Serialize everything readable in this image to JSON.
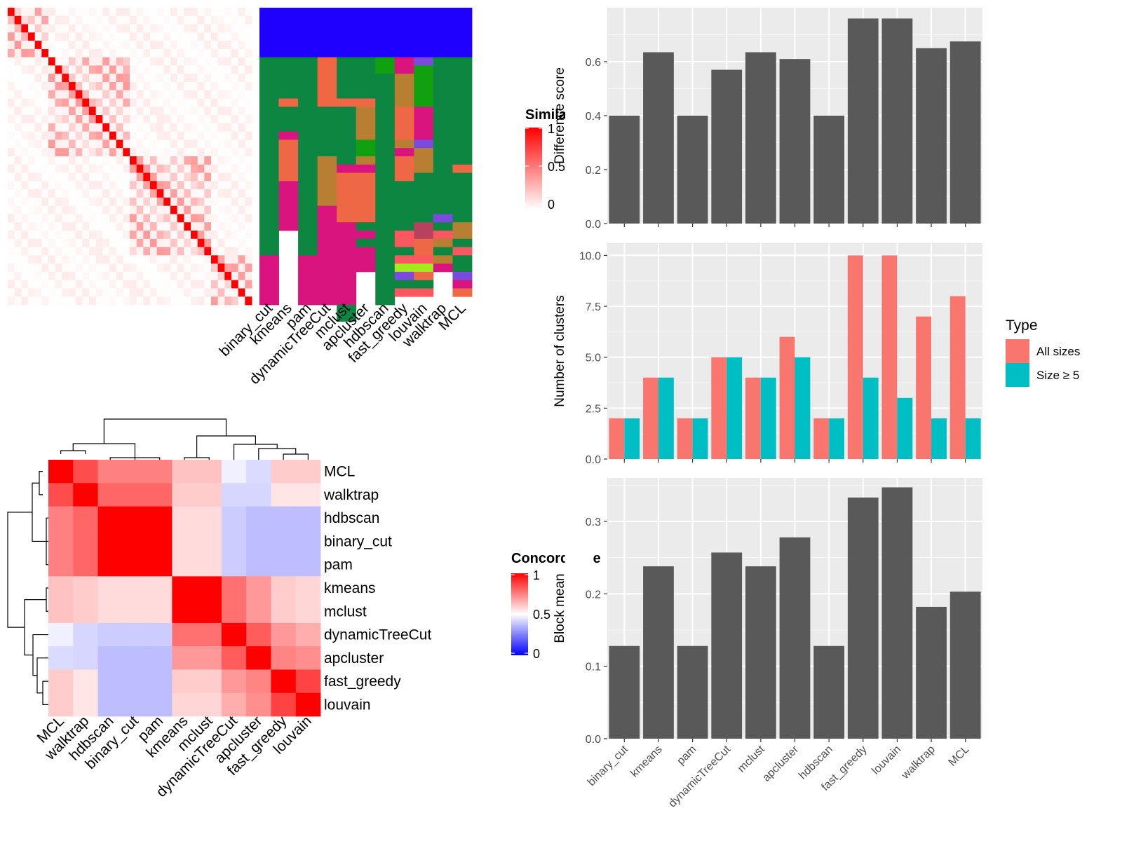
{
  "chart_data": [
    {
      "type": "heatmap",
      "panel": "similarity-heatmap",
      "legend_title": "Similarity",
      "legend_ticks": [
        "1",
        "0.5",
        "0"
      ],
      "colorscale": [
        "#ffffff",
        "#ff0000"
      ],
      "n": 36,
      "blocks": [
        [
          0,
          6
        ],
        [
          6,
          18
        ],
        [
          18,
          30
        ],
        [
          30,
          36
        ]
      ],
      "within_block_similarity": 0.4,
      "between_block_similarity": 0.08
    },
    {
      "type": "heatmap",
      "panel": "cluster-assignment-heatmap",
      "columns": [
        "binary_cut",
        "kmeans",
        "pam",
        "dynamicTreeCut",
        "mclust",
        "apcluster",
        "hdbscan",
        "fast_greedy",
        "louvain",
        "walktrap",
        "MCL"
      ],
      "colors": {
        "blue": "#1f00ff",
        "green": "#0d8642",
        "salmon": "#ef6845",
        "magenta": "#d9147e",
        "brown": "#b87f33",
        "bright_green": "#10a010",
        "purple": "#7b4be0",
        "pink": "#f8585f",
        "lime": "#a4ea1d",
        "maroon": "#b8415f"
      },
      "segments": [
        [
          [
            "blue",
            6
          ],
          [
            "green",
            24
          ],
          [
            "magenta",
            6
          ]
        ],
        [
          [
            "blue",
            6
          ],
          [
            "green",
            5
          ],
          [
            "salmon",
            1
          ],
          [
            "green",
            3
          ],
          [
            "magenta",
            1
          ],
          [
            "salmon",
            5
          ],
          [
            "magenta",
            6
          ]
        ],
        [
          [
            "blue",
            6
          ],
          [
            "green",
            24
          ],
          [
            "magenta",
            6
          ]
        ],
        [
          [
            "blue",
            6
          ],
          [
            "salmon",
            6
          ],
          [
            "green",
            6
          ],
          [
            "brown",
            6
          ],
          [
            "magenta",
            6
          ],
          [
            "magenta",
            6
          ]
        ],
        [
          [
            "blue",
            6
          ],
          [
            "green",
            5
          ],
          [
            "salmon",
            1
          ],
          [
            "green",
            7
          ],
          [
            "magenta",
            1
          ],
          [
            "salmon",
            6
          ],
          [
            "magenta",
            6
          ],
          [
            "magenta",
            4
          ],
          [
            "green",
            2
          ]
        ],
        [
          [
            "blue",
            6
          ],
          [
            "green",
            5
          ],
          [
            "salmon",
            1
          ],
          [
            "brown",
            4
          ],
          [
            "bright_green",
            2
          ],
          [
            "brown",
            1
          ],
          [
            "magenta",
            1
          ],
          [
            "salmon",
            6
          ],
          [
            "green",
            1
          ],
          [
            "magenta",
            1
          ],
          [
            "green",
            1
          ],
          [
            "magenta",
            3
          ]
        ],
        [
          [
            "blue",
            6
          ],
          [
            "bright_green",
            2
          ],
          [
            "green",
            28
          ]
        ],
        [
          [
            "blue",
            6
          ],
          [
            "magenta",
            2
          ],
          [
            "brown",
            4
          ],
          [
            "salmon",
            4
          ],
          [
            "brown",
            1
          ],
          [
            "magenta",
            1
          ],
          [
            "salmon",
            3
          ],
          [
            "green",
            6
          ],
          [
            "pink",
            2
          ],
          [
            "green",
            1
          ],
          [
            "pink",
            1
          ],
          [
            "lime",
            1
          ],
          [
            "purple",
            1
          ],
          [
            "green",
            1
          ],
          [
            "pink",
            1
          ]
        ],
        [
          [
            "blue",
            6
          ],
          [
            "purple",
            1
          ],
          [
            "bright_green",
            5
          ],
          [
            "magenta",
            4
          ],
          [
            "purple",
            1
          ],
          [
            "brown",
            3
          ],
          [
            "green",
            6
          ],
          [
            "maroon",
            2
          ],
          [
            "salmon",
            2
          ],
          [
            "pink",
            1
          ],
          [
            "lime",
            1
          ],
          [
            "salmon",
            1
          ],
          [
            "green",
            1
          ],
          [
            "pink",
            1
          ]
        ],
        [
          [
            "blue",
            6
          ],
          [
            "green",
            19
          ],
          [
            "purple",
            1
          ],
          [
            "green",
            1
          ],
          [
            "pink",
            1
          ],
          [
            "brown",
            1
          ],
          [
            "green",
            1
          ],
          [
            "brown",
            1
          ],
          [
            "magenta",
            1
          ]
        ],
        [
          [
            "blue",
            6
          ],
          [
            "green",
            13
          ],
          [
            "salmon",
            1
          ],
          [
            "green",
            6
          ],
          [
            "brown",
            2
          ],
          [
            "green",
            1
          ],
          [
            "pink",
            1
          ],
          [
            "green",
            2
          ],
          [
            "purple",
            1
          ],
          [
            "magenta",
            1
          ],
          [
            "salmon",
            1
          ]
        ]
      ]
    },
    {
      "type": "heatmap",
      "panel": "concordance-heatmap",
      "legend_title": "Concordance",
      "legend_ticks": [
        "1",
        "0.5",
        "0"
      ],
      "colorscale": [
        "#0000ff",
        "#ffffff",
        "#ff0000"
      ],
      "row_labels": [
        "MCL",
        "walktrap",
        "hdbscan",
        "binary_cut",
        "pam",
        "kmeans",
        "mclust",
        "dynamicTreeCut",
        "apcluster",
        "fast_greedy",
        "louvain"
      ],
      "col_labels": [
        "MCL",
        "walktrap",
        "hdbscan",
        "binary_cut",
        "pam",
        "kmeans",
        "mclust",
        "dynamicTreeCut",
        "apcluster",
        "fast_greedy",
        "louvain"
      ],
      "matrix": [
        [
          1.0,
          0.85,
          0.75,
          0.75,
          0.75,
          0.62,
          0.62,
          0.47,
          0.43,
          0.6,
          0.6
        ],
        [
          0.85,
          1.0,
          0.8,
          0.8,
          0.8,
          0.6,
          0.6,
          0.42,
          0.42,
          0.55,
          0.55
        ],
        [
          0.75,
          0.8,
          1.0,
          1.0,
          1.0,
          0.57,
          0.57,
          0.4,
          0.37,
          0.37,
          0.37
        ],
        [
          0.75,
          0.8,
          1.0,
          1.0,
          1.0,
          0.57,
          0.57,
          0.4,
          0.37,
          0.37,
          0.37
        ],
        [
          0.75,
          0.8,
          1.0,
          1.0,
          1.0,
          0.57,
          0.57,
          0.4,
          0.37,
          0.37,
          0.37
        ],
        [
          0.62,
          0.6,
          0.57,
          0.57,
          0.57,
          1.0,
          1.0,
          0.78,
          0.7,
          0.6,
          0.58
        ],
        [
          0.62,
          0.6,
          0.57,
          0.57,
          0.57,
          1.0,
          1.0,
          0.78,
          0.7,
          0.6,
          0.58
        ],
        [
          0.47,
          0.42,
          0.4,
          0.4,
          0.4,
          0.78,
          0.78,
          1.0,
          0.82,
          0.7,
          0.66
        ],
        [
          0.43,
          0.42,
          0.37,
          0.37,
          0.37,
          0.7,
          0.7,
          0.82,
          1.0,
          0.74,
          0.72
        ],
        [
          0.6,
          0.55,
          0.37,
          0.37,
          0.37,
          0.6,
          0.6,
          0.7,
          0.74,
          1.0,
          0.87
        ],
        [
          0.6,
          0.55,
          0.37,
          0.37,
          0.37,
          0.58,
          0.58,
          0.66,
          0.72,
          0.87,
          1.0
        ]
      ]
    },
    {
      "type": "bar",
      "panel": "difference-score",
      "categories": [
        "binary_cut",
        "kmeans",
        "pam",
        "dynamicTreeCut",
        "mclust",
        "apcluster",
        "hdbscan",
        "fast_greedy",
        "louvain",
        "walktrap",
        "MCL"
      ],
      "values": [
        0.4,
        0.635,
        0.4,
        0.57,
        0.635,
        0.61,
        0.4,
        0.76,
        0.76,
        0.65,
        0.675
      ],
      "ylabel": "Difference score",
      "yticks": [
        "0.0",
        "0.2",
        "0.4",
        "0.6"
      ],
      "ylim": [
        0,
        0.8
      ],
      "bar_color": "#595959",
      "grid": true
    },
    {
      "type": "bar",
      "panel": "number-of-clusters",
      "categories": [
        "binary_cut",
        "kmeans",
        "pam",
        "dynamicTreeCut",
        "mclust",
        "apcluster",
        "hdbscan",
        "fast_greedy",
        "louvain",
        "walktrap",
        "MCL"
      ],
      "series": [
        {
          "name": "All sizes",
          "values": [
            2,
            4,
            2,
            5,
            4,
            6,
            2,
            10,
            10,
            7,
            8
          ],
          "color": "#f8766d"
        },
        {
          "name": "Size ≥ 5",
          "values": [
            2,
            4,
            2,
            5,
            4,
            5,
            2,
            4,
            3,
            2,
            2
          ],
          "color": "#00bfc4"
        }
      ],
      "ylabel": "Number of clusters",
      "yticks": [
        "0.0",
        "2.5",
        "5.0",
        "7.5",
        "10.0"
      ],
      "ylim": [
        0,
        10.6
      ],
      "legend_title": "Type",
      "legend_position": "right",
      "grid": true
    },
    {
      "type": "bar",
      "panel": "block-mean",
      "categories": [
        "binary_cut",
        "kmeans",
        "pam",
        "dynamicTreeCut",
        "mclust",
        "apcluster",
        "hdbscan",
        "fast_greedy",
        "louvain",
        "walktrap",
        "MCL"
      ],
      "values": [
        0.128,
        0.238,
        0.128,
        0.257,
        0.238,
        0.278,
        0.128,
        0.333,
        0.347,
        0.182,
        0.203
      ],
      "ylabel": "Block mean",
      "yticks": [
        "0.0",
        "0.1",
        "0.2",
        "0.3"
      ],
      "ylim": [
        0,
        0.36
      ],
      "bar_color": "#595959",
      "grid": true
    }
  ]
}
